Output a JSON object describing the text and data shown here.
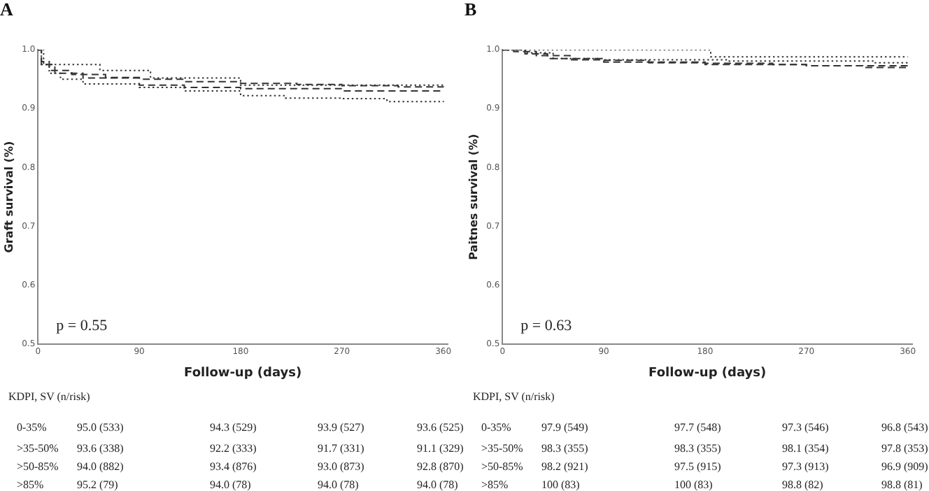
{
  "chart_data": [
    {
      "type": "step",
      "title": "A",
      "xlabel": "Follow-up (days)",
      "ylabel": "Graft survival (%)",
      "xlim": [
        0,
        364
      ],
      "xticks": [
        0,
        90,
        180,
        270,
        360
      ],
      "ylim": [
        0.5,
        1.0
      ],
      "yticks": [
        0.5,
        0.6,
        0.7,
        0.8,
        0.9,
        {
          "value": 1.0,
          "label": "1.0"
        }
      ],
      "grid": false,
      "legend": false,
      "series": [
        {
          "color": "#333333",
          "line_style": "dashed",
          "x": [
            0,
            3,
            10,
            30,
            60,
            90,
            130,
            180,
            230,
            270,
            320,
            360
          ],
          "values": [
            1.0,
            0.98,
            0.965,
            0.958,
            0.953,
            0.95,
            0.946,
            0.943,
            0.941,
            0.939,
            0.937,
            0.936
          ]
        },
        {
          "color": "#333333",
          "line_style": "dotted",
          "x": [
            0,
            3,
            10,
            20,
            40,
            90,
            130,
            180,
            220,
            270,
            310,
            360
          ],
          "values": [
            1.0,
            0.975,
            0.96,
            0.95,
            0.942,
            0.936,
            0.93,
            0.922,
            0.918,
            0.917,
            0.912,
            0.911
          ]
        },
        {
          "color": "#333333",
          "line_style": "dashed",
          "x": [
            0,
            3,
            15,
            40,
            90,
            130,
            180,
            270,
            360
          ],
          "values": [
            1.0,
            0.975,
            0.96,
            0.952,
            0.94,
            0.936,
            0.934,
            0.93,
            0.928
          ]
        },
        {
          "color": "#333333",
          "line_style": "dotted",
          "x": [
            0,
            5,
            55,
            100,
            180,
            360
          ],
          "values": [
            1.0,
            0.975,
            0.965,
            0.952,
            0.94,
            0.94
          ]
        }
      ],
      "annotations": [
        "p = 0.55",
        "KDPI, SV (n/risk)",
        "0-35%",
        "95.0 (533)",
        "94.3 (529)",
        "93.9 (527)",
        "93.6 (525)",
        ">35-50%",
        "93.6 (338)",
        "92.2 (333)",
        "91.7 (331)",
        "91.1 (329)",
        ">50-85%",
        "94.0 (882)",
        "93.4 (876)",
        "93.0 (873)",
        "92.8 (870)",
        ">85%",
        "95.2 (79)",
        "94.0 (78)",
        "94.0 (78)",
        "94.0 (78)"
      ]
    },
    {
      "type": "step",
      "title": "B",
      "xlabel": "Follow-up (days)",
      "ylabel": "Paitnes survival (%)",
      "xlim": [
        0,
        364
      ],
      "xticks": [
        0,
        90,
        180,
        270,
        360
      ],
      "ylim": [
        0.5,
        1.0
      ],
      "yticks": [
        0.5,
        0.6,
        0.7,
        0.8,
        0.9,
        {
          "value": 1.0,
          "label": "1.0"
        }
      ],
      "grid": false,
      "legend": false,
      "series": [
        {
          "color": "#333333",
          "line_style": "dashed",
          "x": [
            0,
            10,
            30,
            60,
            90,
            180,
            240,
            270,
            320,
            360
          ],
          "values": [
            1.0,
            0.997,
            0.99,
            0.983,
            0.979,
            0.977,
            0.975,
            0.973,
            0.97,
            0.968
          ]
        },
        {
          "color": "#333333",
          "line_style": "dotted",
          "x": [
            0,
            20,
            45,
            90,
            200,
            270,
            330,
            360
          ],
          "values": [
            1.0,
            0.995,
            0.985,
            0.983,
            0.981,
            0.981,
            0.978,
            0.978
          ]
        },
        {
          "color": "#333333",
          "line_style": "dashed",
          "x": [
            0,
            20,
            40,
            90,
            130,
            180,
            270,
            360
          ],
          "values": [
            1.0,
            0.993,
            0.985,
            0.982,
            0.978,
            0.975,
            0.973,
            0.969
          ]
        },
        {
          "color": "#333333",
          "line_style": "dotted",
          "x": [
            0,
            185,
            360
          ],
          "values": [
            1.0,
            0.988,
            0.988
          ]
        }
      ],
      "annotations": [
        "p = 0.63",
        "KDPI, SV (n/risk)",
        "0-35%",
        "97.9 (549)",
        "97.7 (548)",
        "97.3 (546)",
        "96.8 (543)",
        ">35-50%",
        "98.3 (355)",
        "98.3 (355)",
        "98.1 (354)",
        "97.8 (353)",
        ">50-85%",
        "98.2 (921)",
        "97.5 (915)",
        "97.3 (913)",
        "96.9 (909)",
        ">85%",
        "100 (83)",
        "100 (83)",
        "98.8 (82)",
        "98.8 (81)"
      ]
    }
  ]
}
